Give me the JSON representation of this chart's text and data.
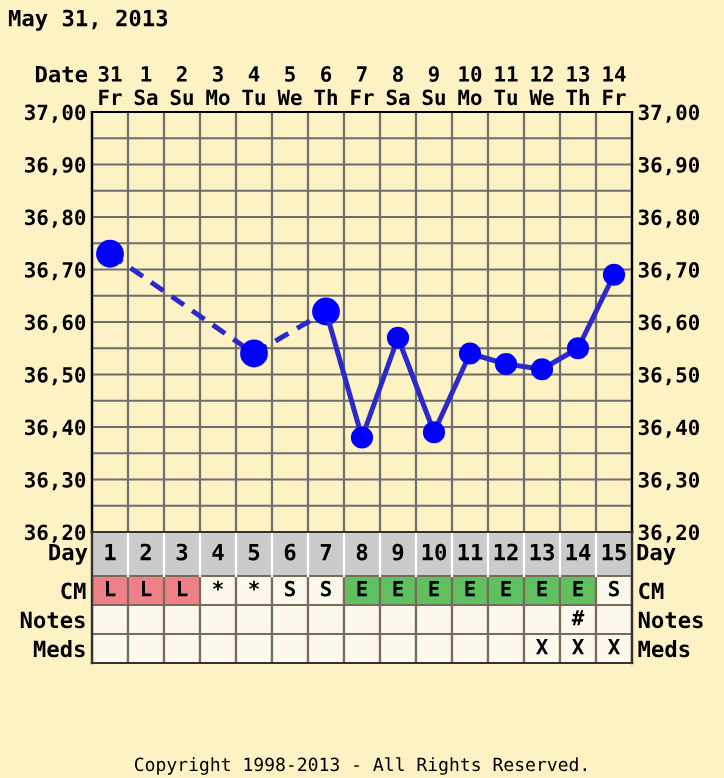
{
  "chart_data": [
    {
      "type": "line",
      "title": "May 31, 2013",
      "xlabel": "Date",
      "categories": [
        "31\nFr",
        "1\nSa",
        "2\nSu",
        "3\nMo",
        "4\nTu",
        "5\nWe",
        "6\nTh",
        "7\nFr",
        "8\nSa",
        "9\nSu",
        "10\nMo",
        "11\nTu",
        "12\nWe",
        "13\nTh",
        "14\nFr"
      ],
      "series": [
        {
          "color": "#2a2acc",
          "line_style": "dashed",
          "values": [
            36.73,
            null,
            null,
            null,
            36.54,
            null,
            36.62,
            null,
            null,
            null,
            null,
            null,
            null,
            null,
            null
          ]
        },
        {
          "color": "#2a2acc",
          "line_style": "solid",
          "values": [
            null,
            null,
            null,
            null,
            null,
            null,
            36.62,
            36.38,
            36.57,
            36.39,
            36.54,
            36.52,
            36.51,
            36.55,
            36.69
          ]
        }
      ],
      "marker": "circle",
      "grid": true,
      "ylim": [
        36.2,
        37.0
      ],
      "yticks": [
        {
          "value": 36.2,
          "label": "36,20"
        },
        {
          "value": 36.25,
          "label": null
        },
        {
          "value": 36.3,
          "label": "36,30"
        },
        {
          "value": 36.35,
          "label": null
        },
        {
          "value": 36.4,
          "label": "36,40"
        },
        {
          "value": 36.45,
          "label": null
        },
        {
          "value": 36.5,
          "label": "36,50"
        },
        {
          "value": 36.55,
          "label": null
        },
        {
          "value": 36.6,
          "label": "36,60"
        },
        {
          "value": 36.65,
          "label": null
        },
        {
          "value": 36.7,
          "label": "36,70"
        },
        {
          "value": 36.75,
          "label": null
        },
        {
          "value": 36.8,
          "label": "36,80"
        },
        {
          "value": 36.85,
          "label": null
        },
        {
          "value": 36.9,
          "label": "36,90"
        },
        {
          "value": 36.95,
          "label": null
        },
        {
          "value": 37.0,
          "label": "37,00"
        }
      ],
      "y2lim": [
        36.2,
        37.0
      ],
      "y2ticks": [
        {
          "value": 36.2,
          "label": "36,20"
        },
        {
          "value": 36.3,
          "label": "36,30"
        },
        {
          "value": 36.4,
          "label": "36,40"
        },
        {
          "value": 36.5,
          "label": "36,50"
        },
        {
          "value": 36.6,
          "label": "36,60"
        },
        {
          "value": 36.7,
          "label": "36,70"
        },
        {
          "value": 36.8,
          "label": "36,80"
        },
        {
          "value": 36.9,
          "label": "36,90"
        },
        {
          "value": 37.0,
          "label": "37,00"
        }
      ]
    },
    {
      "type": "heatmap",
      "xlabel": "Day",
      "categories": [
        "1",
        "2",
        "3",
        "4",
        "5",
        "6",
        "7",
        "8",
        "9",
        "10",
        "11",
        "12",
        "13",
        "14",
        "15"
      ],
      "y_categories": [
        "CM",
        "Notes",
        "Meds"
      ],
      "y2_categories": [
        "CM",
        "Notes",
        "Meds"
      ],
      "cells": [
        [
          null,
          null,
          null,
          null,
          null,
          null,
          null,
          null,
          null,
          null,
          null,
          null,
          null,
          null,
          null
        ],
        [
          null,
          null,
          null,
          null,
          null,
          null,
          null,
          null,
          null,
          null,
          null,
          null,
          null,
          null,
          null
        ],
        [
          null,
          null,
          null,
          null,
          null,
          null,
          null,
          null,
          null,
          null,
          null,
          null,
          null,
          null,
          null
        ]
      ],
      "cell_labels": [
        [
          "L",
          "L",
          "L",
          "*",
          "*",
          "S",
          "S",
          "E",
          "E",
          "E",
          "E",
          "E",
          "E",
          "E",
          "S"
        ],
        [
          null,
          null,
          null,
          null,
          null,
          null,
          null,
          null,
          null,
          null,
          null,
          null,
          null,
          "#",
          null
        ],
        [
          null,
          null,
          null,
          null,
          null,
          null,
          null,
          null,
          null,
          null,
          null,
          null,
          "X",
          "X",
          "X"
        ]
      ],
      "colors": [
        [
          "#f08088",
          "#f08088",
          "#f08088",
          "#fdf8ec",
          "#fdf8ec",
          "#fdf8ec",
          "#fdf8ec",
          "#60c060",
          "#60c060",
          "#60c060",
          "#60c060",
          "#60c060",
          "#60c060",
          "#60c060",
          "#fdf8ec"
        ],
        [
          "#fdf8ec",
          "#fdf8ec",
          "#fdf8ec",
          "#fdf8ec",
          "#fdf8ec",
          "#fdf8ec",
          "#fdf8ec",
          "#fdf8ec",
          "#fdf8ec",
          "#fdf8ec",
          "#fdf8ec",
          "#fdf8ec",
          "#fdf8ec",
          "#fdf8ec",
          "#fdf8ec"
        ],
        [
          "#fdf8ec",
          "#fdf8ec",
          "#fdf8ec",
          "#fdf8ec",
          "#fdf8ec",
          "#fdf8ec",
          "#fdf8ec",
          "#fdf8ec",
          "#fdf8ec",
          "#fdf8ec",
          "#fdf8ec",
          "#fdf8ec",
          "#fdf8ec",
          "#fdf8ec",
          "#fdf8ec"
        ]
      ],
      "annotations": [
        "Copyright 1998-2013 - All Rights Reserved."
      ]
    }
  ]
}
